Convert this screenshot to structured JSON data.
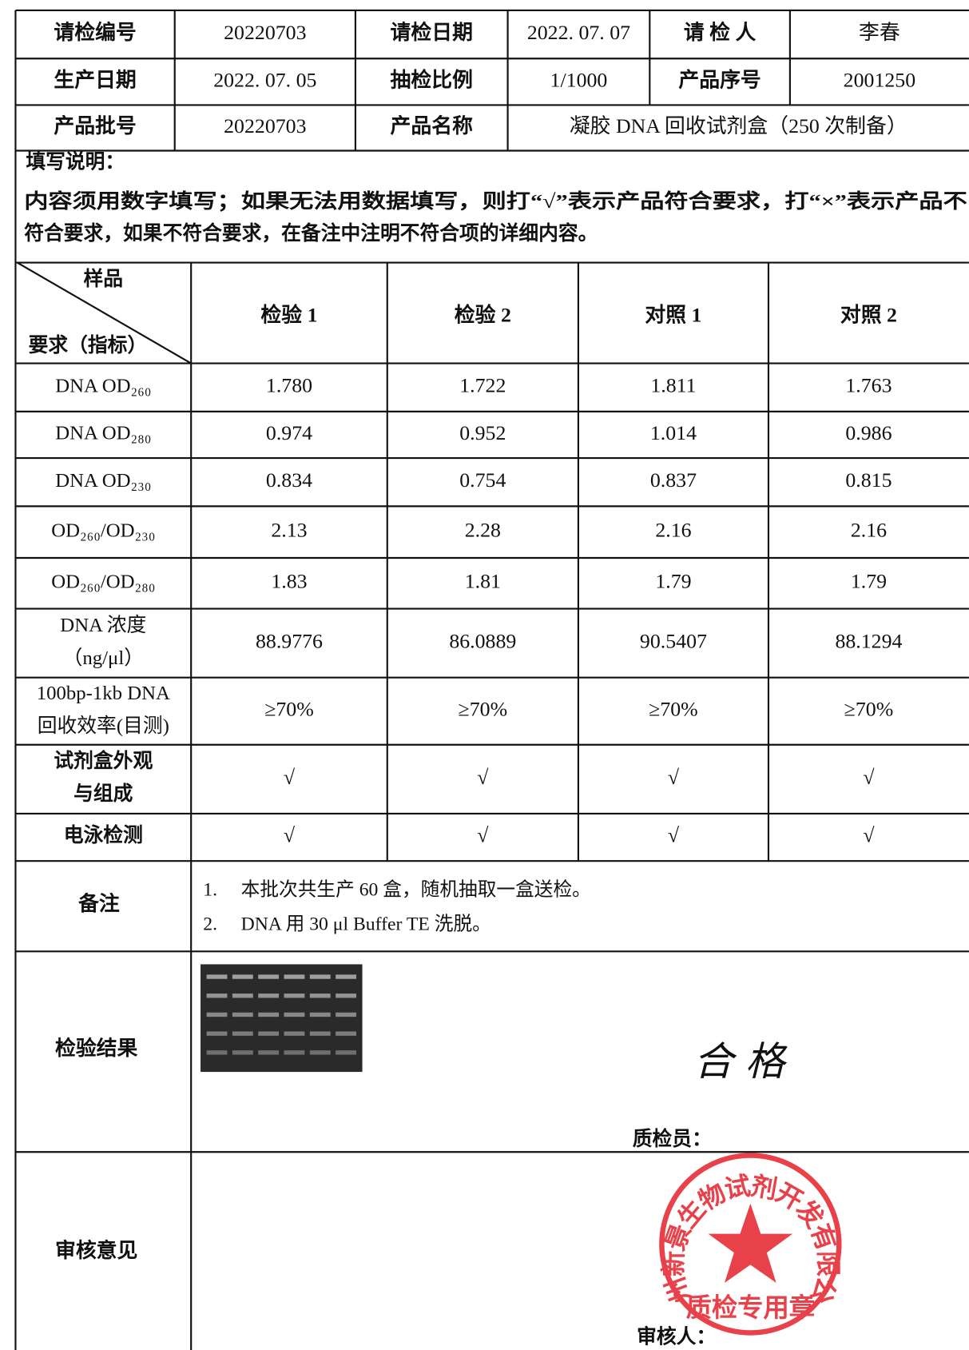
{
  "header": {
    "rows": [
      [
        "请检编号",
        "20220703",
        "请检日期",
        "2022. 07. 07",
        "请 检 人",
        "李春"
      ],
      [
        "生产日期",
        "2022. 07. 05",
        "抽检比例",
        "1/1000",
        "产品序号",
        "2001250"
      ],
      [
        "产品批号",
        "20220703",
        "产品名称",
        "凝胶 DNA 回收试剂盒（250 次制备）"
      ]
    ]
  },
  "instructions": {
    "title": "填写说明：",
    "lines": [
      "内容须用数字填写；如果无法用数据填写，则打“√”表示产品符合要求，打“×”表示产品不",
      "符合要求，如果不符合要求，在备注中注明不符合项的详细内容。"
    ]
  },
  "table": {
    "corner": {
      "top": "样品",
      "bottom": "要求（指标）"
    },
    "columns": [
      "检验 1",
      "检验 2",
      "对照 1",
      "对照 2"
    ],
    "rows": [
      {
        "label": [
          "DNA OD₂₆₀"
        ],
        "values": [
          "1.780",
          "1.722",
          "1.811",
          "1.763"
        ]
      },
      {
        "label": [
          "DNA OD₂₈₀"
        ],
        "values": [
          "0.974",
          "0.952",
          "1.014",
          "0.986"
        ]
      },
      {
        "label": [
          "DNA OD₂₃₀"
        ],
        "values": [
          "0.834",
          "0.754",
          "0.837",
          "0.815"
        ]
      },
      {
        "label": [
          "OD₂₆₀/OD₂₃₀"
        ],
        "values": [
          "2.13",
          "2.28",
          "2.16",
          "2.16"
        ]
      },
      {
        "label": [
          "OD₂₆₀/OD₂₈₀"
        ],
        "values": [
          "1.83",
          "1.81",
          "1.79",
          "1.79"
        ]
      },
      {
        "label": [
          "DNA 浓度",
          "（ng/μl）"
        ],
        "values": [
          "88.9776",
          "86.0889",
          "90.5407",
          "88.1294"
        ]
      },
      {
        "label": [
          "100bp-1kb DNA",
          "回收效率(目测)"
        ],
        "values": [
          "≥70%",
          "≥70%",
          "≥70%",
          "≥70%"
        ]
      },
      {
        "label": [
          "试剂盒外观",
          "与组成"
        ],
        "values": [
          "√",
          "√",
          "√",
          "√"
        ]
      },
      {
        "label": [
          "电泳检测"
        ],
        "values": [
          "√",
          "√",
          "√",
          "√"
        ]
      }
    ]
  },
  "remarks": {
    "label": "备注",
    "items": [
      {
        "num": "1.",
        "text": "本批次共生产 60 盒，随机抽取一盒送检。"
      },
      {
        "num": "2.",
        "text": "DNA 用 30 μl Buffer TE 洗脱。"
      }
    ]
  },
  "result": {
    "label": "检验结果",
    "conclusion": "合格",
    "inspector_label": "质检员："
  },
  "review": {
    "label": "审核意见",
    "reviewer_label": "审核人："
  },
  "stamp": {
    "company": "杭州新景生物试剂开发有限公司",
    "purpose": "质检专用章"
  }
}
